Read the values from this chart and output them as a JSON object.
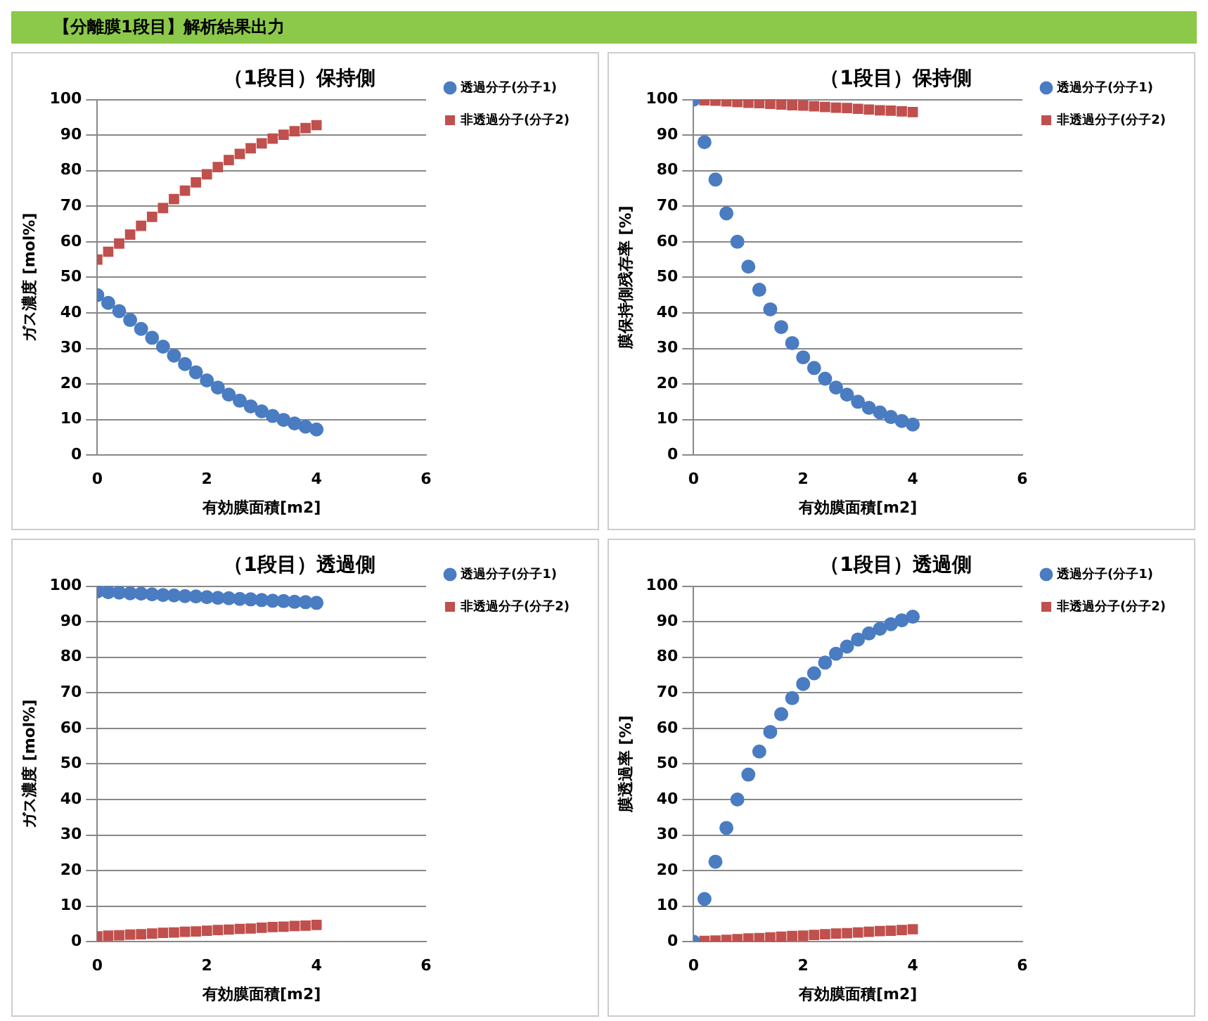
{
  "chart_data": [
    {
      "type": "scatter",
      "title": "（1段目）保持側",
      "annotations": [
        "【分離膜1段目】解析結果出力"
      ],
      "xlabel": "有効膜面積[m2]",
      "ylabel": "ガス濃度 [mol%]",
      "x": [
        0,
        0.2,
        0.4,
        0.6,
        0.8,
        1,
        1.2,
        1.4,
        1.6,
        1.8,
        2,
        2.2,
        2.4,
        2.6,
        2.8,
        3,
        3.2,
        3.4,
        3.6,
        3.8,
        4
      ],
      "xlim": [
        0,
        6
      ],
      "xticks": [
        0,
        2,
        4,
        6
      ],
      "ylim": [
        0,
        100
      ],
      "yticks": [
        0,
        10,
        20,
        30,
        40,
        50,
        60,
        70,
        80,
        90,
        100
      ],
      "grid": "y",
      "legend": "top right",
      "series": [
        {
          "name": "透過分子(分子1)",
          "color": "#4a7cc2",
          "marker": "circle",
          "values": [
            45,
            42.8,
            40.5,
            38,
            35.5,
            33,
            30.5,
            28,
            25.6,
            23.3,
            21,
            19,
            17,
            15.3,
            13.7,
            12.3,
            11,
            9.9,
            8.9,
            8,
            7.2
          ]
        },
        {
          "name": "非透過分子(分子2)",
          "color": "#c0504d",
          "marker": "square",
          "values": [
            55,
            57.2,
            59.5,
            62,
            64.5,
            67,
            69.5,
            72,
            74.4,
            76.7,
            79,
            81,
            83,
            84.7,
            86.3,
            87.7,
            89,
            90.1,
            91.1,
            92,
            92.8
          ]
        }
      ]
    },
    {
      "type": "scatter",
      "title": "（1段目）保持側",
      "xlabel": "有効膜面積[m2]",
      "ylabel": "膜保持側残存率 [%]",
      "x": [
        0,
        0.2,
        0.4,
        0.6,
        0.8,
        1,
        1.2,
        1.4,
        1.6,
        1.8,
        2,
        2.2,
        2.4,
        2.6,
        2.8,
        3,
        3.2,
        3.4,
        3.6,
        3.8,
        4
      ],
      "xlim": [
        0,
        6
      ],
      "xticks": [
        0,
        2,
        4,
        6
      ],
      "ylim": [
        0,
        100
      ],
      "yticks": [
        0,
        10,
        20,
        30,
        40,
        50,
        60,
        70,
        80,
        90,
        100
      ],
      "grid": "y",
      "legend": "top right",
      "series": [
        {
          "name": "透過分子(分子1)",
          "color": "#4a7cc2",
          "marker": "circle",
          "values": [
            100,
            88,
            77.5,
            68,
            60,
            53,
            46.5,
            41,
            36,
            31.5,
            27.5,
            24.5,
            21.5,
            19,
            17,
            15,
            13.3,
            12,
            10.7,
            9.6,
            8.6
          ]
        },
        {
          "name": "非透過分子(分子2)",
          "color": "#c0504d",
          "marker": "square",
          "values": [
            null,
            99.8,
            99.7,
            99.5,
            99.3,
            99.1,
            99,
            98.8,
            98.6,
            98.4,
            98.3,
            98.1,
            97.9,
            97.7,
            97.6,
            97.4,
            97.2,
            97,
            96.9,
            96.7,
            96.5
          ]
        }
      ]
    },
    {
      "type": "scatter",
      "title": "（1段目）透過側",
      "xlabel": "有効膜面積[m2]",
      "ylabel": "ガス濃度 [mol%]",
      "x": [
        0,
        0.2,
        0.4,
        0.6,
        0.8,
        1,
        1.2,
        1.4,
        1.6,
        1.8,
        2,
        2.2,
        2.4,
        2.6,
        2.8,
        3,
        3.2,
        3.4,
        3.6,
        3.8,
        4
      ],
      "xlim": [
        0,
        6
      ],
      "xticks": [
        0,
        2,
        4,
        6
      ],
      "ylim": [
        0,
        100
      ],
      "yticks": [
        0,
        10,
        20,
        30,
        40,
        50,
        60,
        70,
        80,
        90,
        100
      ],
      "grid": "y",
      "legend": "top right",
      "series": [
        {
          "name": "透過分子(分子1)",
          "color": "#4a7cc2",
          "marker": "circle",
          "values": [
            98.5,
            98.3,
            98.2,
            98,
            97.9,
            97.7,
            97.5,
            97.4,
            97.2,
            97.1,
            96.9,
            96.7,
            96.6,
            96.4,
            96.3,
            96.1,
            95.9,
            95.8,
            95.6,
            95.5,
            95.3
          ]
        },
        {
          "name": "非透過分子(分子2)",
          "color": "#c0504d",
          "marker": "square",
          "values": [
            1.5,
            1.7,
            1.8,
            2,
            2.1,
            2.3,
            2.5,
            2.6,
            2.8,
            2.9,
            3.1,
            3.3,
            3.4,
            3.6,
            3.7,
            3.9,
            4.1,
            4.2,
            4.4,
            4.5,
            4.7
          ]
        }
      ]
    },
    {
      "type": "scatter",
      "title": "（1段目）透過側",
      "xlabel": "有効膜面積[m2]",
      "ylabel": "膜透過率 [%]",
      "x": [
        0,
        0.2,
        0.4,
        0.6,
        0.8,
        1,
        1.2,
        1.4,
        1.6,
        1.8,
        2,
        2.2,
        2.4,
        2.6,
        2.8,
        3,
        3.2,
        3.4,
        3.6,
        3.8,
        4
      ],
      "xlim": [
        0,
        6
      ],
      "xticks": [
        0,
        2,
        4,
        6
      ],
      "ylim": [
        0,
        100
      ],
      "yticks": [
        0,
        10,
        20,
        30,
        40,
        50,
        60,
        70,
        80,
        90,
        100
      ],
      "grid": "y",
      "legend": "top right",
      "series": [
        {
          "name": "透過分子(分子1)",
          "color": "#4a7cc2",
          "marker": "circle",
          "values": [
            0,
            12,
            22.5,
            32,
            40,
            47,
            53.5,
            59,
            64,
            68.5,
            72.5,
            75.5,
            78.5,
            81,
            83,
            85,
            86.7,
            88,
            89.3,
            90.4,
            91.4
          ]
        },
        {
          "name": "非透過分子(分子2)",
          "color": "#c0504d",
          "marker": "square",
          "values": [
            null,
            0.2,
            0.3,
            0.5,
            0.7,
            0.9,
            1,
            1.2,
            1.4,
            1.6,
            1.7,
            1.9,
            2.1,
            2.3,
            2.4,
            2.6,
            2.8,
            3,
            3.1,
            3.3,
            3.5
          ]
        }
      ]
    }
  ]
}
